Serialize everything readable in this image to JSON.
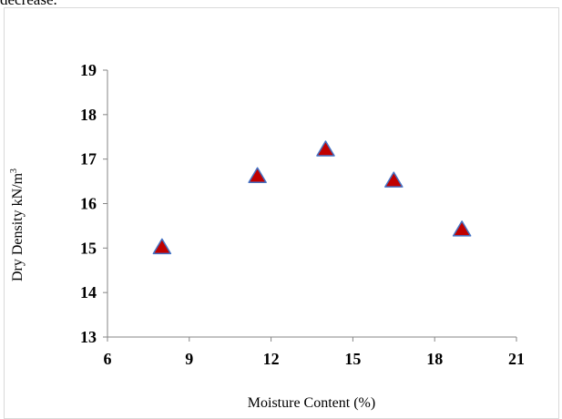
{
  "top_text": "decrease.",
  "chart_data": {
    "type": "scatter",
    "title": "",
    "xlabel": "Moisture Content (%)",
    "ylabel_main": "Dry Density kN/m",
    "ylabel_sup": "3",
    "xlim": [
      6,
      21
    ],
    "ylim": [
      13,
      19
    ],
    "xticks": [
      6,
      9,
      12,
      15,
      18,
      21
    ],
    "yticks": [
      13,
      14,
      15,
      16,
      17,
      18,
      19
    ],
    "grid": false,
    "legend": "none",
    "marker": "triangle",
    "marker_fill": "#c00000",
    "marker_stroke": "#4472c4",
    "series": [
      {
        "x": [
          8,
          11.5,
          14,
          16.5,
          19
        ],
        "y": [
          15.0,
          16.6,
          17.2,
          16.5,
          15.4
        ]
      }
    ]
  }
}
